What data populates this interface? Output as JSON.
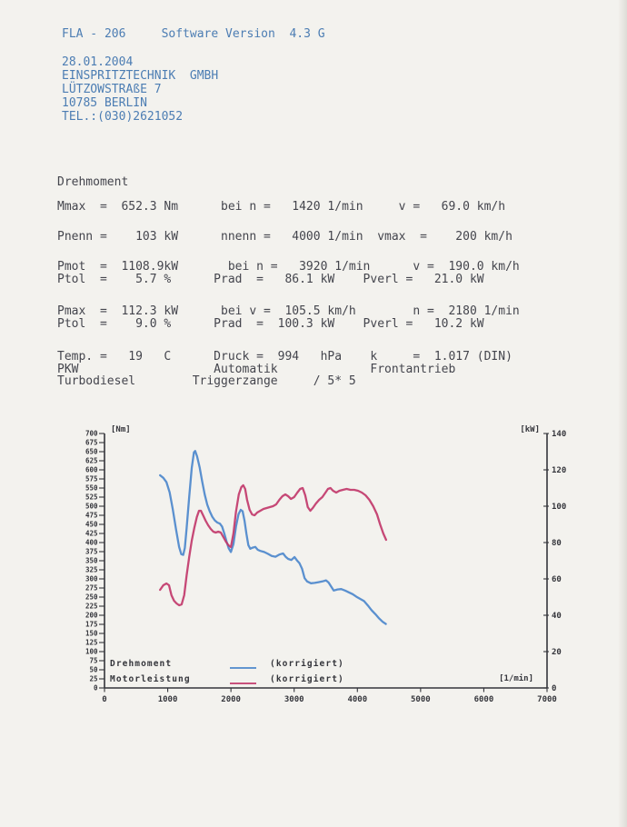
{
  "colors": {
    "print_blue": "#4c7db3",
    "print_dark": "#44454d",
    "axis_dark": "#34353b",
    "torque_curve": "#4d88cc",
    "power_curve": "#c23a6b"
  },
  "header": {
    "title_line": "FLA - 206     Software Version  4.3 G",
    "date": "28.01.2004",
    "company": "EINSPRITZTECHNIK  GMBH",
    "street": "LÜTZOWSTRAßE 7",
    "city": "10785 BERLIN",
    "phone": "TEL.:(030)2621052"
  },
  "report": {
    "section_title": "Drehmoment",
    "rows": {
      "r1": "Mmax  =  652.3 Nm      bei n =   1420 1/min     v =   69.0 km/h",
      "r2": "Pnenn =    103 kW      nnenn =   4000 1/min  vmax  =    200 km/h",
      "r3a": "Pmot  =  1108.9kW       bei n =   3920 1/min      v =  190.0 km/h",
      "r3b": "Ptol  =    5.7 %      Prad  =   86.1 kW    Pverl =   21.0 kW",
      "r4a": "Pmax  =  112.3 kW      bei v =  105.5 km/h        n =  2180 1/min",
      "r4b": "Ptol  =    9.0 %      Prad  =  100.3 kW    Pverl =   10.2 kW",
      "r5a": "Temp. =   19   C      Druck =  994   hPa    k     =  1.017 (DIN)",
      "r5b": "PKW                   Automatik             Frontantrieb",
      "r5c": "Turbodiesel        Triggerzange     / 5* 5"
    }
  },
  "chart_data": {
    "type": "line",
    "x_axis": {
      "label": "[1/min]",
      "min": 0,
      "max": 7000,
      "ticks": [
        0,
        1000,
        2000,
        3000,
        4000,
        5000,
        6000,
        7000
      ]
    },
    "y_left": {
      "label": "[Nm]",
      "min": 0,
      "max": 700,
      "ticks": [
        0,
        25,
        50,
        75,
        100,
        125,
        150,
        175,
        200,
        225,
        250,
        275,
        300,
        325,
        350,
        375,
        400,
        425,
        450,
        475,
        500,
        525,
        550,
        575,
        600,
        625,
        650,
        675,
        700
      ]
    },
    "y_right": {
      "label": "[kW]",
      "min": 0,
      "max": 140,
      "ticks": [
        0,
        20,
        40,
        60,
        80,
        100,
        120,
        140
      ]
    },
    "legend_position": "bottom-left-inside",
    "grid": false,
    "series": [
      {
        "name": "Drehmoment",
        "suffix": "(korrigiert)",
        "axis": "left",
        "unit": "Nm",
        "color": "#4d88cc",
        "points": [
          [
            880,
            585
          ],
          [
            930,
            578
          ],
          [
            980,
            566
          ],
          [
            1030,
            538
          ],
          [
            1080,
            492
          ],
          [
            1130,
            438
          ],
          [
            1180,
            388
          ],
          [
            1215,
            368
          ],
          [
            1245,
            366
          ],
          [
            1270,
            385
          ],
          [
            1300,
            440
          ],
          [
            1340,
            525
          ],
          [
            1380,
            605
          ],
          [
            1415,
            648
          ],
          [
            1435,
            652
          ],
          [
            1465,
            637
          ],
          [
            1505,
            607
          ],
          [
            1545,
            568
          ],
          [
            1585,
            532
          ],
          [
            1625,
            504
          ],
          [
            1665,
            486
          ],
          [
            1705,
            471
          ],
          [
            1745,
            461
          ],
          [
            1785,
            455
          ],
          [
            1825,
            452
          ],
          [
            1860,
            444
          ],
          [
            1895,
            425
          ],
          [
            1930,
            403
          ],
          [
            1965,
            384
          ],
          [
            2000,
            374
          ],
          [
            2040,
            396
          ],
          [
            2080,
            444
          ],
          [
            2120,
            478
          ],
          [
            2155,
            490
          ],
          [
            2185,
            486
          ],
          [
            2215,
            460
          ],
          [
            2245,
            424
          ],
          [
            2275,
            393
          ],
          [
            2305,
            383
          ],
          [
            2345,
            386
          ],
          [
            2385,
            388
          ],
          [
            2425,
            380
          ],
          [
            2465,
            377
          ],
          [
            2525,
            374
          ],
          [
            2585,
            369
          ],
          [
            2645,
            363
          ],
          [
            2705,
            361
          ],
          [
            2765,
            367
          ],
          [
            2825,
            370
          ],
          [
            2865,
            361
          ],
          [
            2905,
            355
          ],
          [
            2955,
            352
          ],
          [
            3005,
            360
          ],
          [
            3045,
            351
          ],
          [
            3085,
            343
          ],
          [
            3125,
            328
          ],
          [
            3165,
            302
          ],
          [
            3205,
            293
          ],
          [
            3265,
            288
          ],
          [
            3325,
            289
          ],
          [
            3385,
            291
          ],
          [
            3445,
            293
          ],
          [
            3505,
            296
          ],
          [
            3545,
            290
          ],
          [
            3585,
            279
          ],
          [
            3625,
            268
          ],
          [
            3685,
            271
          ],
          [
            3745,
            272
          ],
          [
            3805,
            268
          ],
          [
            3865,
            263
          ],
          [
            3925,
            258
          ],
          [
            3985,
            251
          ],
          [
            4045,
            245
          ],
          [
            4105,
            239
          ],
          [
            4165,
            227
          ],
          [
            4225,
            214
          ],
          [
            4285,
            203
          ],
          [
            4345,
            191
          ],
          [
            4400,
            182
          ],
          [
            4450,
            176
          ]
        ]
      },
      {
        "name": "Motorleistung",
        "suffix": "(korrigiert)",
        "axis": "right",
        "unit": "kW",
        "color": "#c23a6b",
        "points": [
          [
            880,
            54
          ],
          [
            930,
            56.5
          ],
          [
            980,
            57.5
          ],
          [
            1020,
            56.5
          ],
          [
            1060,
            51
          ],
          [
            1100,
            48
          ],
          [
            1140,
            46.5
          ],
          [
            1180,
            45.5
          ],
          [
            1220,
            46
          ],
          [
            1260,
            51
          ],
          [
            1300,
            62
          ],
          [
            1340,
            72
          ],
          [
            1380,
            81
          ],
          [
            1420,
            88
          ],
          [
            1460,
            94
          ],
          [
            1495,
            97.5
          ],
          [
            1525,
            97.5
          ],
          [
            1560,
            95
          ],
          [
            1600,
            92
          ],
          [
            1640,
            89.5
          ],
          [
            1680,
            87.5
          ],
          [
            1720,
            86
          ],
          [
            1760,
            85.5
          ],
          [
            1800,
            86
          ],
          [
            1840,
            85.5
          ],
          [
            1880,
            83
          ],
          [
            1920,
            80.5
          ],
          [
            1960,
            78.5
          ],
          [
            2000,
            77.5
          ],
          [
            2040,
            85
          ],
          [
            2080,
            97
          ],
          [
            2125,
            106.5
          ],
          [
            2165,
            110.5
          ],
          [
            2195,
            111.5
          ],
          [
            2225,
            109.5
          ],
          [
            2255,
            103.5
          ],
          [
            2295,
            98
          ],
          [
            2335,
            95.5
          ],
          [
            2375,
            95
          ],
          [
            2415,
            96.5
          ],
          [
            2465,
            97.5
          ],
          [
            2515,
            98.5
          ],
          [
            2565,
            99
          ],
          [
            2615,
            99.5
          ],
          [
            2665,
            100
          ],
          [
            2715,
            101
          ],
          [
            2765,
            103.5
          ],
          [
            2815,
            105.5
          ],
          [
            2860,
            106.5
          ],
          [
            2905,
            105.5
          ],
          [
            2950,
            104
          ],
          [
            3000,
            105
          ],
          [
            3050,
            107.5
          ],
          [
            3095,
            109.5
          ],
          [
            3135,
            110
          ],
          [
            3175,
            106
          ],
          [
            3215,
            99.5
          ],
          [
            3255,
            97.5
          ],
          [
            3295,
            99
          ],
          [
            3345,
            101.5
          ],
          [
            3395,
            103.5
          ],
          [
            3445,
            105
          ],
          [
            3495,
            107.5
          ],
          [
            3535,
            109.5
          ],
          [
            3575,
            110
          ],
          [
            3615,
            108.5
          ],
          [
            3665,
            107.5
          ],
          [
            3715,
            108.5
          ],
          [
            3770,
            109
          ],
          [
            3830,
            109.5
          ],
          [
            3890,
            109
          ],
          [
            3950,
            109
          ],
          [
            4010,
            108.5
          ],
          [
            4070,
            107.5
          ],
          [
            4130,
            106
          ],
          [
            4190,
            103.5
          ],
          [
            4250,
            100
          ],
          [
            4310,
            95.5
          ],
          [
            4360,
            90
          ],
          [
            4410,
            85
          ],
          [
            4455,
            81.5
          ]
        ]
      }
    ]
  }
}
